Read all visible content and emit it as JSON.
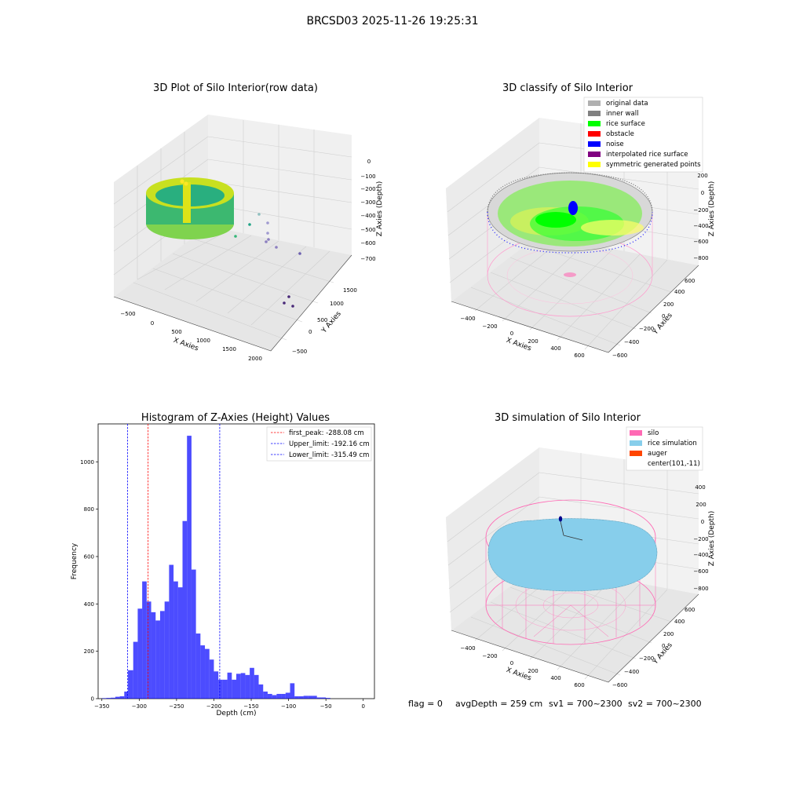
{
  "figure": {
    "suptitle": "BRCSD03 2025-11-26 19:25:31",
    "status_text": {
      "flag": "flag = 0",
      "avg_depth": "avgDepth = 259 cm",
      "sv1": "sv1 = 700~2300",
      "sv2": "sv2 = 700~2300"
    }
  },
  "panel_raw": {
    "title": "3D Plot of Silo Interior(row data)",
    "xlabel": "X Axies",
    "ylabel": "Y Axies",
    "zlabel": "Z Axies (Depth)",
    "xticks": [
      "−500",
      "0",
      "500",
      "1000",
      "1500",
      "2000"
    ],
    "yticks": [
      "−500",
      "0",
      "500",
      "1000",
      "1500"
    ],
    "zticks": [
      "0",
      "−100",
      "−200",
      "−300",
      "−400",
      "−500",
      "−600",
      "−700"
    ]
  },
  "panel_classify": {
    "title": "3D classify of Silo Interior",
    "xlabel": "X Axies",
    "ylabel": "Y Axies",
    "zlabel": "Z Axies (Depth)",
    "xticks": [
      "−400",
      "−200",
      "0",
      "200",
      "400",
      "600"
    ],
    "yticks": [
      "−600",
      "−400",
      "−200",
      "0",
      "200",
      "400",
      "600"
    ],
    "zticks": [
      "200",
      "0",
      "−200",
      "−400",
      "−600",
      "−800"
    ],
    "legend": [
      {
        "label": "original data",
        "color": "#b0b0b0"
      },
      {
        "label": "inner wall",
        "color": "#808080"
      },
      {
        "label": "rice surface",
        "color": "#00ff00"
      },
      {
        "label": "obstacle",
        "color": "#ff0000"
      },
      {
        "label": "noise",
        "color": "#0000ff"
      },
      {
        "label": "interpolated rice surface",
        "color": "#800080"
      },
      {
        "label": "symmetric generated points",
        "color": "#ffff00"
      }
    ]
  },
  "panel_sim": {
    "title": "3D simulation of Silo Interior",
    "xlabel": "X Axies",
    "ylabel": "Y Axies",
    "zlabel": "Z Axies (Depth)",
    "xticks": [
      "−400",
      "−200",
      "0",
      "200",
      "400",
      "600"
    ],
    "yticks": [
      "−600",
      "−400",
      "−200",
      "0",
      "200",
      "400",
      "600"
    ],
    "zticks": [
      "400",
      "200",
      "0",
      "−200",
      "−400",
      "−600",
      "−800"
    ],
    "legend": [
      {
        "label": "silo",
        "color": "#ff69b4"
      },
      {
        "label": "rice simulation",
        "color": "#87ceeb"
      },
      {
        "label": "auger",
        "color": "#ff4500"
      },
      {
        "label": "center(101,-11)",
        "color": ""
      }
    ]
  },
  "chart_data": {
    "type": "bar",
    "title": "Histogram of Z-Axies (Height) Values",
    "xlabel": "Depth (cm)",
    "ylabel": "Frequency",
    "xlim": [
      -355,
      15
    ],
    "ylim": [
      0,
      1160
    ],
    "xticks": [
      -350,
      -300,
      -250,
      -200,
      -150,
      -100,
      -50,
      0
    ],
    "yticks": [
      0,
      200,
      400,
      600,
      800,
      1000
    ],
    "bar_color": "#0000ff",
    "bins": [
      {
        "start": -350,
        "end": -344,
        "value": 2
      },
      {
        "start": -344,
        "end": -338,
        "value": 3
      },
      {
        "start": -338,
        "end": -332,
        "value": 4
      },
      {
        "start": -332,
        "end": -326,
        "value": 8
      },
      {
        "start": -326,
        "end": -320,
        "value": 10
      },
      {
        "start": -320,
        "end": -315,
        "value": 30
      },
      {
        "start": -315,
        "end": -308,
        "value": 120
      },
      {
        "start": -308,
        "end": -302,
        "value": 240
      },
      {
        "start": -302,
        "end": -296,
        "value": 380
      },
      {
        "start": -296,
        "end": -290,
        "value": 495
      },
      {
        "start": -290,
        "end": -284,
        "value": 410
      },
      {
        "start": -284,
        "end": -278,
        "value": 365
      },
      {
        "start": -278,
        "end": -272,
        "value": 330
      },
      {
        "start": -272,
        "end": -266,
        "value": 370
      },
      {
        "start": -266,
        "end": -260,
        "value": 410
      },
      {
        "start": -260,
        "end": -254,
        "value": 565
      },
      {
        "start": -254,
        "end": -248,
        "value": 495
      },
      {
        "start": -248,
        "end": -242,
        "value": 470
      },
      {
        "start": -242,
        "end": -236,
        "value": 750
      },
      {
        "start": -236,
        "end": -230,
        "value": 1110
      },
      {
        "start": -230,
        "end": -224,
        "value": 545
      },
      {
        "start": -224,
        "end": -218,
        "value": 275
      },
      {
        "start": -218,
        "end": -212,
        "value": 225
      },
      {
        "start": -212,
        "end": -206,
        "value": 210
      },
      {
        "start": -206,
        "end": -200,
        "value": 165
      },
      {
        "start": -200,
        "end": -194,
        "value": 115
      },
      {
        "start": -194,
        "end": -188,
        "value": 80
      },
      {
        "start": -188,
        "end": -182,
        "value": 80
      },
      {
        "start": -182,
        "end": -176,
        "value": 110
      },
      {
        "start": -176,
        "end": -170,
        "value": 80
      },
      {
        "start": -170,
        "end": -164,
        "value": 105
      },
      {
        "start": -164,
        "end": -158,
        "value": 108
      },
      {
        "start": -158,
        "end": -152,
        "value": 100
      },
      {
        "start": -152,
        "end": -146,
        "value": 130
      },
      {
        "start": -146,
        "end": -140,
        "value": 100
      },
      {
        "start": -140,
        "end": -134,
        "value": 60
      },
      {
        "start": -134,
        "end": -128,
        "value": 30
      },
      {
        "start": -128,
        "end": -122,
        "value": 20
      },
      {
        "start": -122,
        "end": -116,
        "value": 15
      },
      {
        "start": -116,
        "end": -110,
        "value": 20
      },
      {
        "start": -110,
        "end": -104,
        "value": 20
      },
      {
        "start": -104,
        "end": -98,
        "value": 25
      },
      {
        "start": -98,
        "end": -92,
        "value": 65
      },
      {
        "start": -92,
        "end": -86,
        "value": 10
      },
      {
        "start": -86,
        "end": -80,
        "value": 10
      },
      {
        "start": -80,
        "end": -74,
        "value": 12
      },
      {
        "start": -74,
        "end": -68,
        "value": 12
      },
      {
        "start": -68,
        "end": -62,
        "value": 12
      },
      {
        "start": -62,
        "end": -56,
        "value": 5
      },
      {
        "start": -56,
        "end": -50,
        "value": 5
      },
      {
        "start": -50,
        "end": -44,
        "value": 3
      }
    ],
    "vlines": [
      {
        "label": "first_peak: -288.08 cm",
        "x": -288.08,
        "color": "#ff0000"
      },
      {
        "label": "Upper_limit: -192.16 cm",
        "x": -192.16,
        "color": "#0000ff"
      },
      {
        "label": "Lower_limit: -315.49 cm",
        "x": -315.49,
        "color": "#0000ff"
      }
    ]
  }
}
